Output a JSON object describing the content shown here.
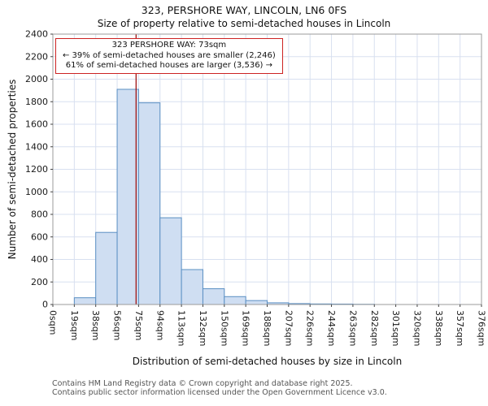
{
  "title": "323, PERSHORE WAY, LINCOLN, LN6 0FS",
  "subtitle": "Size of property relative to semi-detached houses in Lincoln",
  "annotation": {
    "line1": "323 PERSHORE WAY: 73sqm",
    "line2": "← 39% of semi-detached houses are smaller (2,246)",
    "line3": "61% of semi-detached houses are larger (3,536) →"
  },
  "footer": {
    "line1": "Contains HM Land Registry data © Crown copyright and database right 2025.",
    "line2": "Contains public sector information licensed under the Open Government Licence v3.0."
  },
  "chart_data": {
    "type": "bar",
    "title": "323, PERSHORE WAY, LINCOLN, LN6 0FS",
    "subtitle": "Size of property relative to semi-detached houses in Lincoln",
    "xlabel": "Distribution of semi-detached houses by size in Lincoln",
    "ylabel": "Number of semi-detached properties",
    "categories": [
      "0sqm",
      "19sqm",
      "38sqm",
      "56sqm",
      "75sqm",
      "94sqm",
      "113sqm",
      "132sqm",
      "150sqm",
      "169sqm",
      "188sqm",
      "207sqm",
      "226sqm",
      "244sqm",
      "263sqm",
      "282sqm",
      "301sqm",
      "320sqm",
      "338sqm",
      "357sqm",
      "376sqm"
    ],
    "bin_edges_sqm": [
      0,
      19,
      38,
      56,
      75,
      94,
      113,
      132,
      150,
      169,
      188,
      207,
      226,
      244,
      263,
      282,
      301,
      320,
      338,
      357,
      376
    ],
    "values": [
      0,
      60,
      640,
      1910,
      1790,
      770,
      310,
      140,
      70,
      35,
      15,
      8,
      5,
      4,
      2,
      0,
      0,
      0,
      0,
      0
    ],
    "ylim": [
      0,
      2400
    ],
    "ytick_step": 200,
    "x_max": 376,
    "marker_value_sqm": 73,
    "marker_color": "#a01616",
    "bar_fill": "#cfdef2",
    "bar_stroke": "#5a8fc3",
    "grid_color": "#d8e0f0",
    "grid": true,
    "legend_position": "none"
  }
}
